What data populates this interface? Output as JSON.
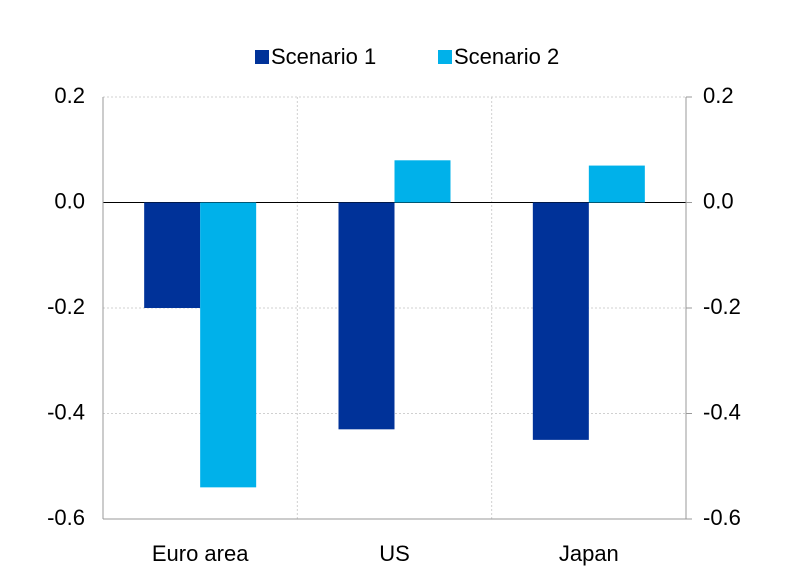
{
  "chart_data": {
    "type": "bar",
    "categories": [
      "Euro area",
      "US",
      "Japan"
    ],
    "series": [
      {
        "name": "Scenario 1",
        "color": "#003299",
        "values": [
          -0.2,
          -0.43,
          -0.45
        ]
      },
      {
        "name": "Scenario 2",
        "color": "#00b1ea",
        "values": [
          -0.54,
          0.08,
          0.07
        ]
      }
    ],
    "ylim": [
      -0.6,
      0.2
    ],
    "yticks": [
      0.2,
      {
        "value": 0,
        "label": "0.0"
      },
      -0.2,
      -0.4,
      -0.6
    ],
    "y2lim": [
      -0.6,
      0.2
    ],
    "y2ticks": [
      0.2,
      {
        "value": 0,
        "label": "0.0"
      },
      -0.2,
      -0.4,
      -0.6
    ],
    "grid": true,
    "legend": "top"
  }
}
